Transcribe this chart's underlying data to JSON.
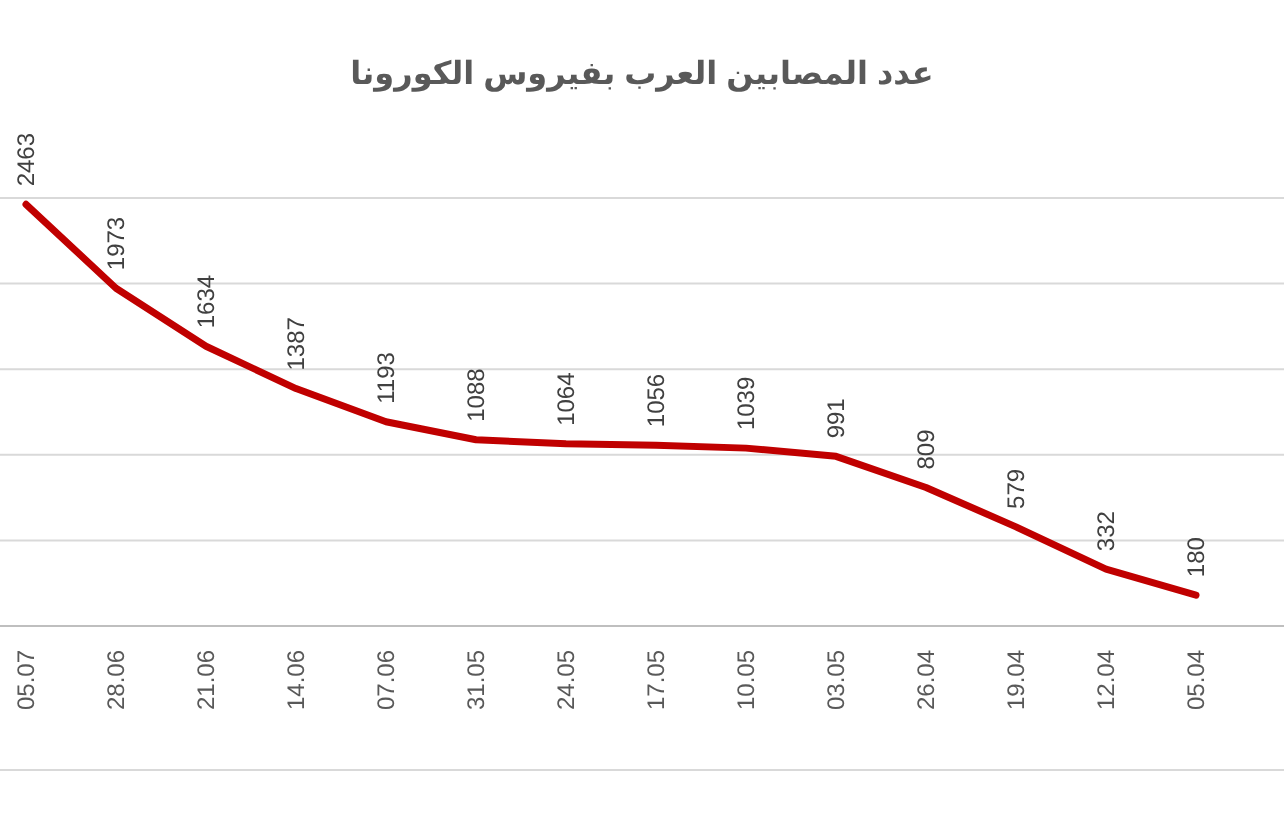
{
  "chart_data": {
    "type": "line",
    "title": "عدد المصابين العرب بفيروس الكورونا",
    "categories": [
      "05.07",
      "28.06",
      "21.06",
      "14.06",
      "07.06",
      "31.05",
      "24.05",
      "17.05",
      "10.05",
      "03.05",
      "26.04",
      "19.04",
      "12.04",
      "05.04"
    ],
    "series": [
      {
        "color": "#c00000",
        "values": [
          2463,
          1973,
          1634,
          1387,
          1193,
          1088,
          1064,
          1056,
          1039,
          991,
          809,
          579,
          332,
          180
        ]
      }
    ],
    "ylim": [
      0,
      2500
    ],
    "yticks": [
      {
        "value": 0,
        "label": null
      },
      {
        "value": 500,
        "label": null
      },
      {
        "value": 1000,
        "label": null
      },
      {
        "value": 1500,
        "label": null
      },
      {
        "value": 2000,
        "label": null
      },
      {
        "value": 2500,
        "label": null
      }
    ],
    "tick_labels": "x",
    "grid": "y",
    "data_labels": true,
    "marker": "none",
    "line_style": "solid"
  }
}
